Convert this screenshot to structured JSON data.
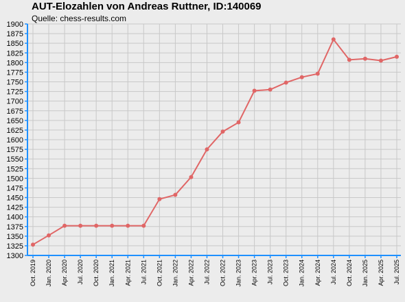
{
  "chart_data": {
    "type": "line",
    "title": "AUT-Elozahlen von Andreas Ruttner, ID:140069",
    "subtitle": "Quelle: chess-results.com",
    "xlabel": "",
    "ylabel": "",
    "ylim": [
      1300,
      1900
    ],
    "ytick_step": 25,
    "grid": true,
    "categories": [
      "Oct. 2019",
      "Jan. 2020",
      "Apr. 2020",
      "Jul. 2020",
      "Oct. 2020",
      "Jan. 2021",
      "Apr. 2021",
      "Jul. 2021",
      "Oct. 2021",
      "Jan. 2022",
      "Apr. 2022",
      "Jul. 2022",
      "Oct. 2022",
      "Jan. 2023",
      "Apr. 2023",
      "Jul. 2023",
      "Oct. 2023",
      "Jan. 2024",
      "Apr. 2024",
      "Jul. 2024",
      "Oct. 2024",
      "Jan. 2025",
      "Apr. 2025",
      "Jul. 2025"
    ],
    "series": [
      {
        "color": "#e06666",
        "values": [
          1328,
          1352,
          1377,
          1377,
          1377,
          1377,
          1377,
          1377,
          1446,
          1457,
          1503,
          1575,
          1621,
          1645,
          1727,
          1730,
          1748,
          1762,
          1771,
          1860,
          1807,
          1810,
          1805,
          1815
        ]
      }
    ],
    "colors": {
      "background": "#ececec",
      "plot_background": "#ececec",
      "grid": "#c8c8c8",
      "axis": "#1e90ff",
      "line": "#e06666"
    }
  }
}
